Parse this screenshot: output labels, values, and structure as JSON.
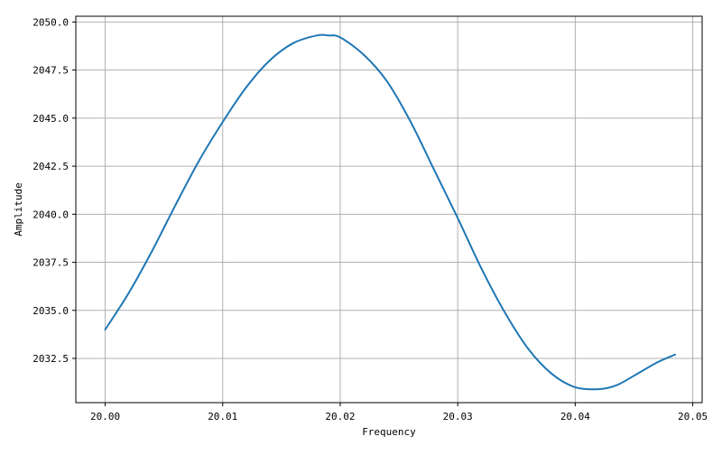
{
  "chart_data": {
    "type": "line",
    "title": "",
    "xlabel": "Frequency",
    "ylabel": "Amplitude",
    "xlim": [
      19.9975,
      20.0508
    ],
    "ylim": [
      2030.2,
      2050.3
    ],
    "xticks": [
      20.0,
      20.01,
      20.02,
      20.03,
      20.04,
      20.05
    ],
    "xtick_labels": [
      "20.00",
      "20.01",
      "20.02",
      "20.03",
      "20.04",
      "20.05"
    ],
    "yticks": [
      2032.5,
      2035.0,
      2037.5,
      2040.0,
      2042.5,
      2045.0,
      2047.5,
      2050.0
    ],
    "ytick_labels": [
      "2032.5",
      "2035.0",
      "2037.5",
      "2040.0",
      "2042.5",
      "2045.0",
      "2047.5",
      "2050.0"
    ],
    "grid": true,
    "series": [
      {
        "color": "#1f77b4",
        "x": [
          20.0,
          20.002,
          20.004,
          20.006,
          20.008,
          20.01,
          20.012,
          20.014,
          20.016,
          20.018,
          20.019,
          20.02,
          20.022,
          20.024,
          20.026,
          20.028,
          20.03,
          20.032,
          20.034,
          20.036,
          20.038,
          20.04,
          20.042,
          20.0435,
          20.045,
          20.047,
          20.0485
        ],
        "y": [
          2034.0,
          2035.9,
          2038.1,
          2040.5,
          2042.8,
          2044.8,
          2046.6,
          2048.0,
          2048.9,
          2049.3,
          2049.3,
          2049.2,
          2048.3,
          2046.9,
          2044.8,
          2042.3,
          2039.8,
          2037.2,
          2034.9,
          2033.0,
          2031.7,
          2031.0,
          2030.9,
          2031.1,
          2031.6,
          2032.3,
          2032.7
        ]
      }
    ]
  }
}
